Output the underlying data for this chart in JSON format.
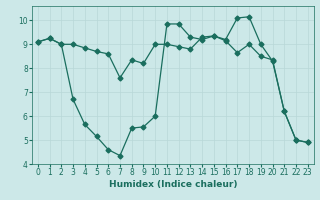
{
  "xlabel": "Humidex (Indice chaleur)",
  "bg_color": "#cce8e8",
  "grid_color": "#b8d8d8",
  "line_color": "#1a6e5e",
  "xlim": [
    -0.5,
    23.5
  ],
  "ylim": [
    4,
    10.6
  ],
  "yticks": [
    4,
    5,
    6,
    7,
    8,
    9,
    10
  ],
  "xticks": [
    0,
    1,
    2,
    3,
    4,
    5,
    6,
    7,
    8,
    9,
    10,
    11,
    12,
    13,
    14,
    15,
    16,
    17,
    18,
    19,
    20,
    21,
    22,
    23
  ],
  "series1_x": [
    0,
    1,
    2,
    3,
    4,
    5,
    6,
    7,
    8,
    9,
    10,
    11,
    12,
    13,
    14,
    15,
    16,
    17,
    18,
    19,
    20,
    21,
    22,
    23
  ],
  "series1_y": [
    9.1,
    9.25,
    9.0,
    9.0,
    8.85,
    8.7,
    8.6,
    7.6,
    8.35,
    8.2,
    9.0,
    9.0,
    8.9,
    8.8,
    9.3,
    9.35,
    9.15,
    8.65,
    9.0,
    8.5,
    8.35,
    6.2,
    5.0,
    4.9
  ],
  "series2_x": [
    0,
    1,
    2,
    3,
    4,
    5,
    6,
    7,
    8,
    9,
    10,
    11,
    12,
    13,
    14,
    15,
    16,
    17,
    18,
    19,
    20,
    21,
    22,
    23
  ],
  "series2_y": [
    9.1,
    9.25,
    9.0,
    6.7,
    5.65,
    5.15,
    4.6,
    4.35,
    5.5,
    5.55,
    6.0,
    9.85,
    9.85,
    9.3,
    9.2,
    9.35,
    9.2,
    10.1,
    10.15,
    9.0,
    8.3,
    6.2,
    5.0,
    4.9
  ],
  "marker_size": 2.5,
  "linewidth": 0.9,
  "font_size_axis": 6.5,
  "font_size_tick": 5.5
}
